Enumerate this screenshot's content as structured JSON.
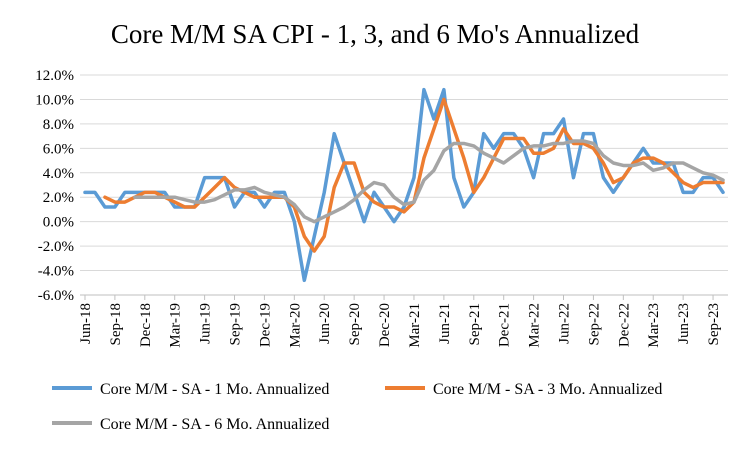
{
  "chart_data": {
    "type": "line",
    "title": "Core M/M SA CPI - 1, 3, and 6 Mo's Annualized",
    "xlabel": "",
    "ylabel": "",
    "ylim": [
      -6.0,
      12.0
    ],
    "yticks": [
      "12.0%",
      "10.0%",
      "8.0%",
      "6.0%",
      "4.0%",
      "2.0%",
      "0.0%",
      "-2.0%",
      "-4.0%",
      "-6.0%"
    ],
    "ytick_values": [
      12,
      10,
      8,
      6,
      4,
      2,
      0,
      -2,
      -4,
      -6
    ],
    "x": [
      "Jun-18",
      "Jul-18",
      "Aug-18",
      "Sep-18",
      "Oct-18",
      "Nov-18",
      "Dec-18",
      "Jan-19",
      "Feb-19",
      "Mar-19",
      "Apr-19",
      "May-19",
      "Jun-19",
      "Jul-19",
      "Aug-19",
      "Sep-19",
      "Oct-19",
      "Nov-19",
      "Dec-19",
      "Jan-20",
      "Feb-20",
      "Mar-20",
      "Apr-20",
      "May-20",
      "Jun-20",
      "Jul-20",
      "Aug-20",
      "Sep-20",
      "Oct-20",
      "Nov-20",
      "Dec-20",
      "Jan-21",
      "Feb-21",
      "Mar-21",
      "Apr-21",
      "May-21",
      "Jun-21",
      "Jul-21",
      "Aug-21",
      "Sep-21",
      "Oct-21",
      "Nov-21",
      "Dec-21",
      "Jan-22",
      "Feb-22",
      "Mar-22",
      "Apr-22",
      "May-22",
      "Jun-22",
      "Jul-22",
      "Aug-22",
      "Sep-22",
      "Oct-22",
      "Nov-22",
      "Dec-22",
      "Jan-23",
      "Feb-23",
      "Mar-23",
      "Apr-23",
      "May-23",
      "Jun-23",
      "Jul-23",
      "Aug-23",
      "Sep-23",
      "Oct-23"
    ],
    "xtick_labels": [
      "Jun-18",
      "Sep-18",
      "Dec-18",
      "Mar-19",
      "Jun-19",
      "Sep-19",
      "Dec-19",
      "Mar-20",
      "Jun-20",
      "Sep-20",
      "Dec-20",
      "Mar-21",
      "Jun-21",
      "Sep-21",
      "Dec-21",
      "Mar-22",
      "Jun-22",
      "Sep-22",
      "Dec-22",
      "Mar-23",
      "Jun-23",
      "Sep-23"
    ],
    "grid": "horizontal",
    "legend_position": "bottom",
    "series": [
      {
        "name": "Core M/M - SA - 1 Mo. Annualized",
        "color": "#5B9BD5",
        "values": [
          2.4,
          2.4,
          1.2,
          1.2,
          2.4,
          2.4,
          2.4,
          2.4,
          2.4,
          1.2,
          1.2,
          1.2,
          3.6,
          3.6,
          3.6,
          1.2,
          2.4,
          2.4,
          1.2,
          2.4,
          2.4,
          0.0,
          -4.8,
          -1.2,
          2.4,
          7.2,
          4.8,
          2.4,
          0.0,
          2.4,
          1.2,
          0.0,
          1.2,
          3.6,
          10.8,
          8.4,
          10.8,
          3.6,
          1.2,
          2.4,
          7.2,
          6.0,
          7.2,
          7.2,
          6.0,
          3.6,
          7.2,
          7.2,
          8.4,
          3.6,
          7.2,
          7.2,
          3.6,
          2.4,
          3.6,
          4.8,
          6.0,
          4.8,
          4.8,
          4.8,
          2.4,
          2.4,
          3.6,
          3.6,
          2.4
        ]
      },
      {
        "name": "Core M/M - SA - 3 Mo. Annualized",
        "color": "#ED7D31",
        "values": [
          null,
          null,
          2.0,
          1.6,
          1.6,
          2.0,
          2.4,
          2.4,
          2.0,
          1.6,
          1.2,
          1.2,
          2.0,
          2.8,
          3.6,
          2.8,
          2.4,
          2.0,
          2.0,
          2.0,
          2.0,
          1.2,
          -1.2,
          -2.4,
          -1.2,
          2.8,
          4.8,
          4.8,
          2.4,
          1.6,
          1.2,
          1.2,
          0.8,
          1.6,
          5.2,
          7.6,
          10.0,
          7.6,
          5.2,
          2.4,
          3.6,
          5.2,
          6.8,
          6.8,
          6.8,
          5.6,
          5.6,
          6.0,
          7.6,
          6.4,
          6.4,
          6.0,
          4.8,
          3.2,
          3.6,
          4.8,
          5.2,
          5.2,
          4.8,
          4.0,
          3.2,
          2.8,
          3.2,
          3.2,
          3.2
        ]
      },
      {
        "name": "Core M/M - SA - 6 Mo. Annualized",
        "color": "#A5A5A5",
        "values": [
          null,
          null,
          null,
          null,
          null,
          2.0,
          2.0,
          2.0,
          2.0,
          2.0,
          1.8,
          1.6,
          1.6,
          1.8,
          2.2,
          2.6,
          2.6,
          2.8,
          2.4,
          2.2,
          2.0,
          1.4,
          0.4,
          0.0,
          0.4,
          0.8,
          1.2,
          1.8,
          2.6,
          3.2,
          3.0,
          2.0,
          1.4,
          1.6,
          3.4,
          4.2,
          5.8,
          6.4,
          6.4,
          6.2,
          5.6,
          5.2,
          4.8,
          5.4,
          6.0,
          6.2,
          6.2,
          6.4,
          6.4,
          6.6,
          6.6,
          6.4,
          5.4,
          4.8,
          4.6,
          4.6,
          4.8,
          4.2,
          4.4,
          4.8,
          4.8,
          4.4,
          4.0,
          3.8,
          3.4
        ]
      }
    ]
  }
}
